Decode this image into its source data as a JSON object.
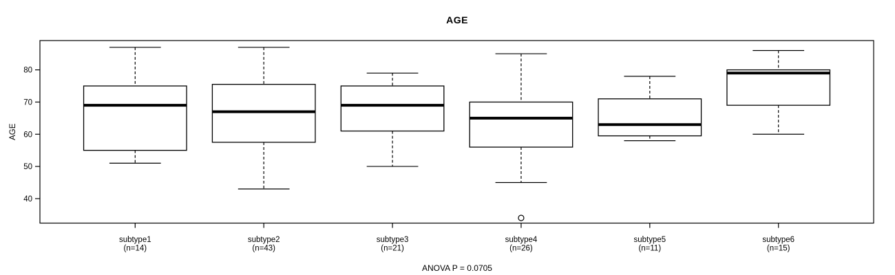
{
  "chart_data": {
    "type": "boxplot",
    "title": "AGE",
    "ylabel": "AGE",
    "annotation": "ANOVA P = 0.0705",
    "y_ticks": [
      40,
      50,
      60,
      70,
      80
    ],
    "ylim": [
      32.4,
      89.1
    ],
    "grid": false,
    "legend": null,
    "groups": [
      {
        "label": "subtype1",
        "n_label": "(n=14)",
        "n": 14,
        "whisker_low": 51,
        "q1": 55,
        "median": 69,
        "q3": 75,
        "whisker_high": 87,
        "outliers": []
      },
      {
        "label": "subtype2",
        "n_label": "(n=43)",
        "n": 43,
        "whisker_low": 43,
        "q1": 57.5,
        "median": 67,
        "q3": 75.5,
        "whisker_high": 87,
        "outliers": []
      },
      {
        "label": "subtype3",
        "n_label": "(n=21)",
        "n": 21,
        "whisker_low": 50,
        "q1": 61,
        "median": 69,
        "q3": 75,
        "whisker_high": 79,
        "outliers": []
      },
      {
        "label": "subtype4",
        "n_label": "(n=26)",
        "n": 26,
        "whisker_low": 45,
        "q1": 56,
        "median": 65,
        "q3": 70,
        "whisker_high": 85,
        "outliers": [
          34
        ]
      },
      {
        "label": "subtype5",
        "n_label": "(n=11)",
        "n": 11,
        "whisker_low": 58,
        "q1": 59.5,
        "median": 63,
        "q3": 71,
        "whisker_high": 78,
        "outliers": []
      },
      {
        "label": "subtype6",
        "n_label": "(n=15)",
        "n": 15,
        "whisker_low": 60,
        "q1": 69,
        "median": 79,
        "q3": 80,
        "whisker_high": 86,
        "outliers": []
      }
    ]
  },
  "colors": {
    "box_stroke": "#000000",
    "box_fill": "#ffffff",
    "median": "#000000",
    "whisker": "#000000",
    "axis": "#000000",
    "background": "#ffffff",
    "text": "#000000"
  }
}
